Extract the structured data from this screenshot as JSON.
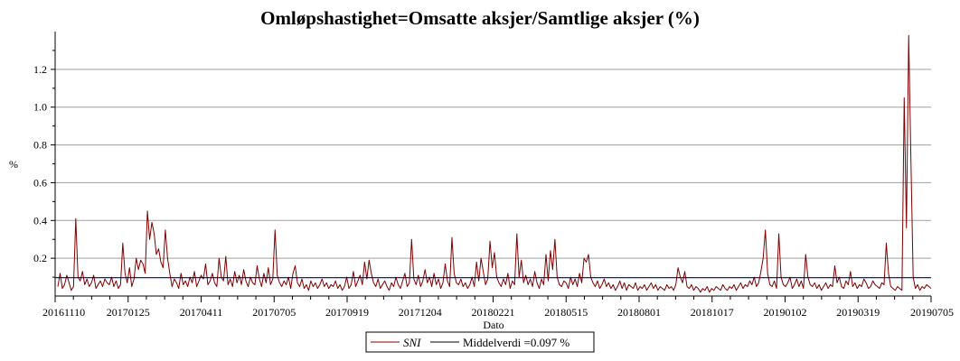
{
  "chart_data": {
    "type": "line",
    "title": "Omløpshastighet=Omsatte aksjer/Samtlige aksjer (%)",
    "xlabel": "Dato",
    "ylabel": "%",
    "ylim": [
      0,
      1.4
    ],
    "y_ticks": [
      0.2,
      0.4,
      0.6,
      0.8,
      1.0,
      1.2
    ],
    "y_tick_labels": [
      "0.2",
      "0.4",
      "0.6",
      "0.8",
      "1.0",
      "1.2"
    ],
    "grid": true,
    "x_tick_labels": [
      "20161110",
      "20170125",
      "20170411",
      "20170705",
      "20170919",
      "20171204",
      "20180221",
      "20180515",
      "20180801",
      "20181017",
      "20190102",
      "20190319",
      "20190705"
    ],
    "series": [
      {
        "name": "SNI",
        "color": "#800000",
        "values": [
          0.05,
          0.12,
          0.04,
          0.06,
          0.11,
          0.07,
          0.03,
          0.05,
          0.41,
          0.1,
          0.08,
          0.13,
          0.06,
          0.09,
          0.05,
          0.07,
          0.11,
          0.04,
          0.06,
          0.08,
          0.05,
          0.09,
          0.07,
          0.06,
          0.1,
          0.05,
          0.08,
          0.04,
          0.06,
          0.28,
          0.12,
          0.07,
          0.15,
          0.05,
          0.09,
          0.2,
          0.14,
          0.19,
          0.17,
          0.12,
          0.45,
          0.3,
          0.39,
          0.33,
          0.22,
          0.25,
          0.18,
          0.15,
          0.35,
          0.2,
          0.12,
          0.05,
          0.09,
          0.07,
          0.04,
          0.12,
          0.06,
          0.08,
          0.05,
          0.1,
          0.07,
          0.13,
          0.05,
          0.08,
          0.11,
          0.09,
          0.17,
          0.06,
          0.08,
          0.12,
          0.07,
          0.05,
          0.2,
          0.1,
          0.08,
          0.21,
          0.06,
          0.09,
          0.05,
          0.13,
          0.07,
          0.11,
          0.06,
          0.14,
          0.08,
          0.05,
          0.1,
          0.07,
          0.06,
          0.16,
          0.09,
          0.05,
          0.12,
          0.07,
          0.15,
          0.06,
          0.09,
          0.35,
          0.11,
          0.07,
          0.05,
          0.08,
          0.06,
          0.1,
          0.04,
          0.12,
          0.16,
          0.07,
          0.05,
          0.09,
          0.04,
          0.06,
          0.03,
          0.08,
          0.05,
          0.07,
          0.04,
          0.06,
          0.09,
          0.05,
          0.07,
          0.04,
          0.06,
          0.05,
          0.08,
          0.04,
          0.06,
          0.03,
          0.05,
          0.1,
          0.04,
          0.06,
          0.13,
          0.05,
          0.08,
          0.11,
          0.06,
          0.18,
          0.09,
          0.19,
          0.12,
          0.07,
          0.05,
          0.09,
          0.04,
          0.06,
          0.08,
          0.05,
          0.03,
          0.07,
          0.05,
          0.1,
          0.06,
          0.04,
          0.08,
          0.12,
          0.05,
          0.07,
          0.3,
          0.09,
          0.06,
          0.11,
          0.05,
          0.08,
          0.14,
          0.07,
          0.1,
          0.05,
          0.12,
          0.06,
          0.09,
          0.04,
          0.07,
          0.17,
          0.08,
          0.05,
          0.31,
          0.12,
          0.07,
          0.06,
          0.09,
          0.05,
          0.07,
          0.04,
          0.06,
          0.1,
          0.05,
          0.18,
          0.08,
          0.2,
          0.13,
          0.06,
          0.09,
          0.29,
          0.15,
          0.23,
          0.1,
          0.07,
          0.05,
          0.09,
          0.06,
          0.12,
          0.04,
          0.08,
          0.06,
          0.33,
          0.1,
          0.19,
          0.07,
          0.11,
          0.06,
          0.09,
          0.05,
          0.13,
          0.07,
          0.04,
          0.09,
          0.06,
          0.22,
          0.08,
          0.24,
          0.14,
          0.3,
          0.1,
          0.06,
          0.05,
          0.08,
          0.07,
          0.04,
          0.1,
          0.06,
          0.09,
          0.05,
          0.12,
          0.07,
          0.2,
          0.18,
          0.22,
          0.1,
          0.07,
          0.05,
          0.08,
          0.04,
          0.06,
          0.09,
          0.05,
          0.07,
          0.04,
          0.06,
          0.03,
          0.05,
          0.08,
          0.04,
          0.07,
          0.03,
          0.06,
          0.05,
          0.04,
          0.07,
          0.03,
          0.05,
          0.04,
          0.06,
          0.03,
          0.05,
          0.07,
          0.04,
          0.06,
          0.03,
          0.05,
          0.04,
          0.03,
          0.06,
          0.04,
          0.05,
          0.03,
          0.06,
          0.15,
          0.1,
          0.07,
          0.13,
          0.05,
          0.04,
          0.06,
          0.03,
          0.05,
          0.04,
          0.02,
          0.04,
          0.03,
          0.05,
          0.02,
          0.04,
          0.03,
          0.05,
          0.04,
          0.03,
          0.06,
          0.04,
          0.03,
          0.05,
          0.04,
          0.06,
          0.03,
          0.05,
          0.07,
          0.04,
          0.06,
          0.05,
          0.08,
          0.06,
          0.1,
          0.05,
          0.07,
          0.13,
          0.2,
          0.35,
          0.12,
          0.06,
          0.05,
          0.08,
          0.04,
          0.33,
          0.1,
          0.06,
          0.05,
          0.07,
          0.1,
          0.04,
          0.06,
          0.09,
          0.05,
          0.08,
          0.04,
          0.22,
          0.1,
          0.06,
          0.05,
          0.07,
          0.04,
          0.06,
          0.03,
          0.05,
          0.07,
          0.04,
          0.06,
          0.05,
          0.16,
          0.07,
          0.1,
          0.05,
          0.04,
          0.08,
          0.06,
          0.13,
          0.05,
          0.07,
          0.04,
          0.06,
          0.05,
          0.09,
          0.07,
          0.04,
          0.05,
          0.08,
          0.06,
          0.05,
          0.04,
          0.07,
          0.06,
          0.28,
          0.12,
          0.05,
          0.04,
          0.03,
          0.05,
          0.04,
          0.03,
          1.05,
          0.36,
          1.38,
          0.72,
          0.1,
          0.04,
          0.06,
          0.03,
          0.05,
          0.04,
          0.06,
          0.05,
          0.04
        ]
      },
      {
        "name": "Middelverdi =0.097 %",
        "color": "#000080",
        "constant": 0.097
      }
    ],
    "legend": "bottom-center"
  }
}
